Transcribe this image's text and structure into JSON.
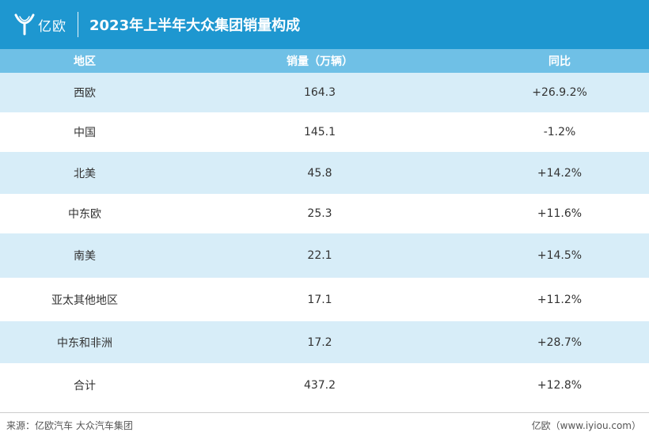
{
  "header": {
    "logo_text": "亿欧",
    "title": "2023年上半年大众集团销量构成"
  },
  "chart_data": {
    "type": "table",
    "title": "2023年上半年大众集团销量构成",
    "columns": [
      "地区",
      "销量（万辆）",
      "同比"
    ],
    "rows": [
      [
        "西欧",
        "164.3",
        "+26.9.2%"
      ],
      [
        "中国",
        "145.1",
        "-1.2%"
      ],
      [
        "北美",
        "45.8",
        "+14.2%"
      ],
      [
        "中东欧",
        "25.3",
        "+11.6%"
      ],
      [
        "南美",
        "22.1",
        "+14.5%"
      ],
      [
        "亚太其他地区",
        "17.1",
        "+11.2%"
      ],
      [
        "中东和非洲",
        "17.2",
        "+28.7%"
      ],
      [
        "合计",
        "437.2",
        "+12.8%"
      ]
    ]
  },
  "footer": {
    "source": "来源：亿欧汽车 大众汽车集团",
    "credit": "亿欧（www.iyiou.com）"
  },
  "colors": {
    "header_bg": "#1e97d0",
    "table_header_bg": "#6fc0e6",
    "row_stripe": "#d7edf8"
  }
}
